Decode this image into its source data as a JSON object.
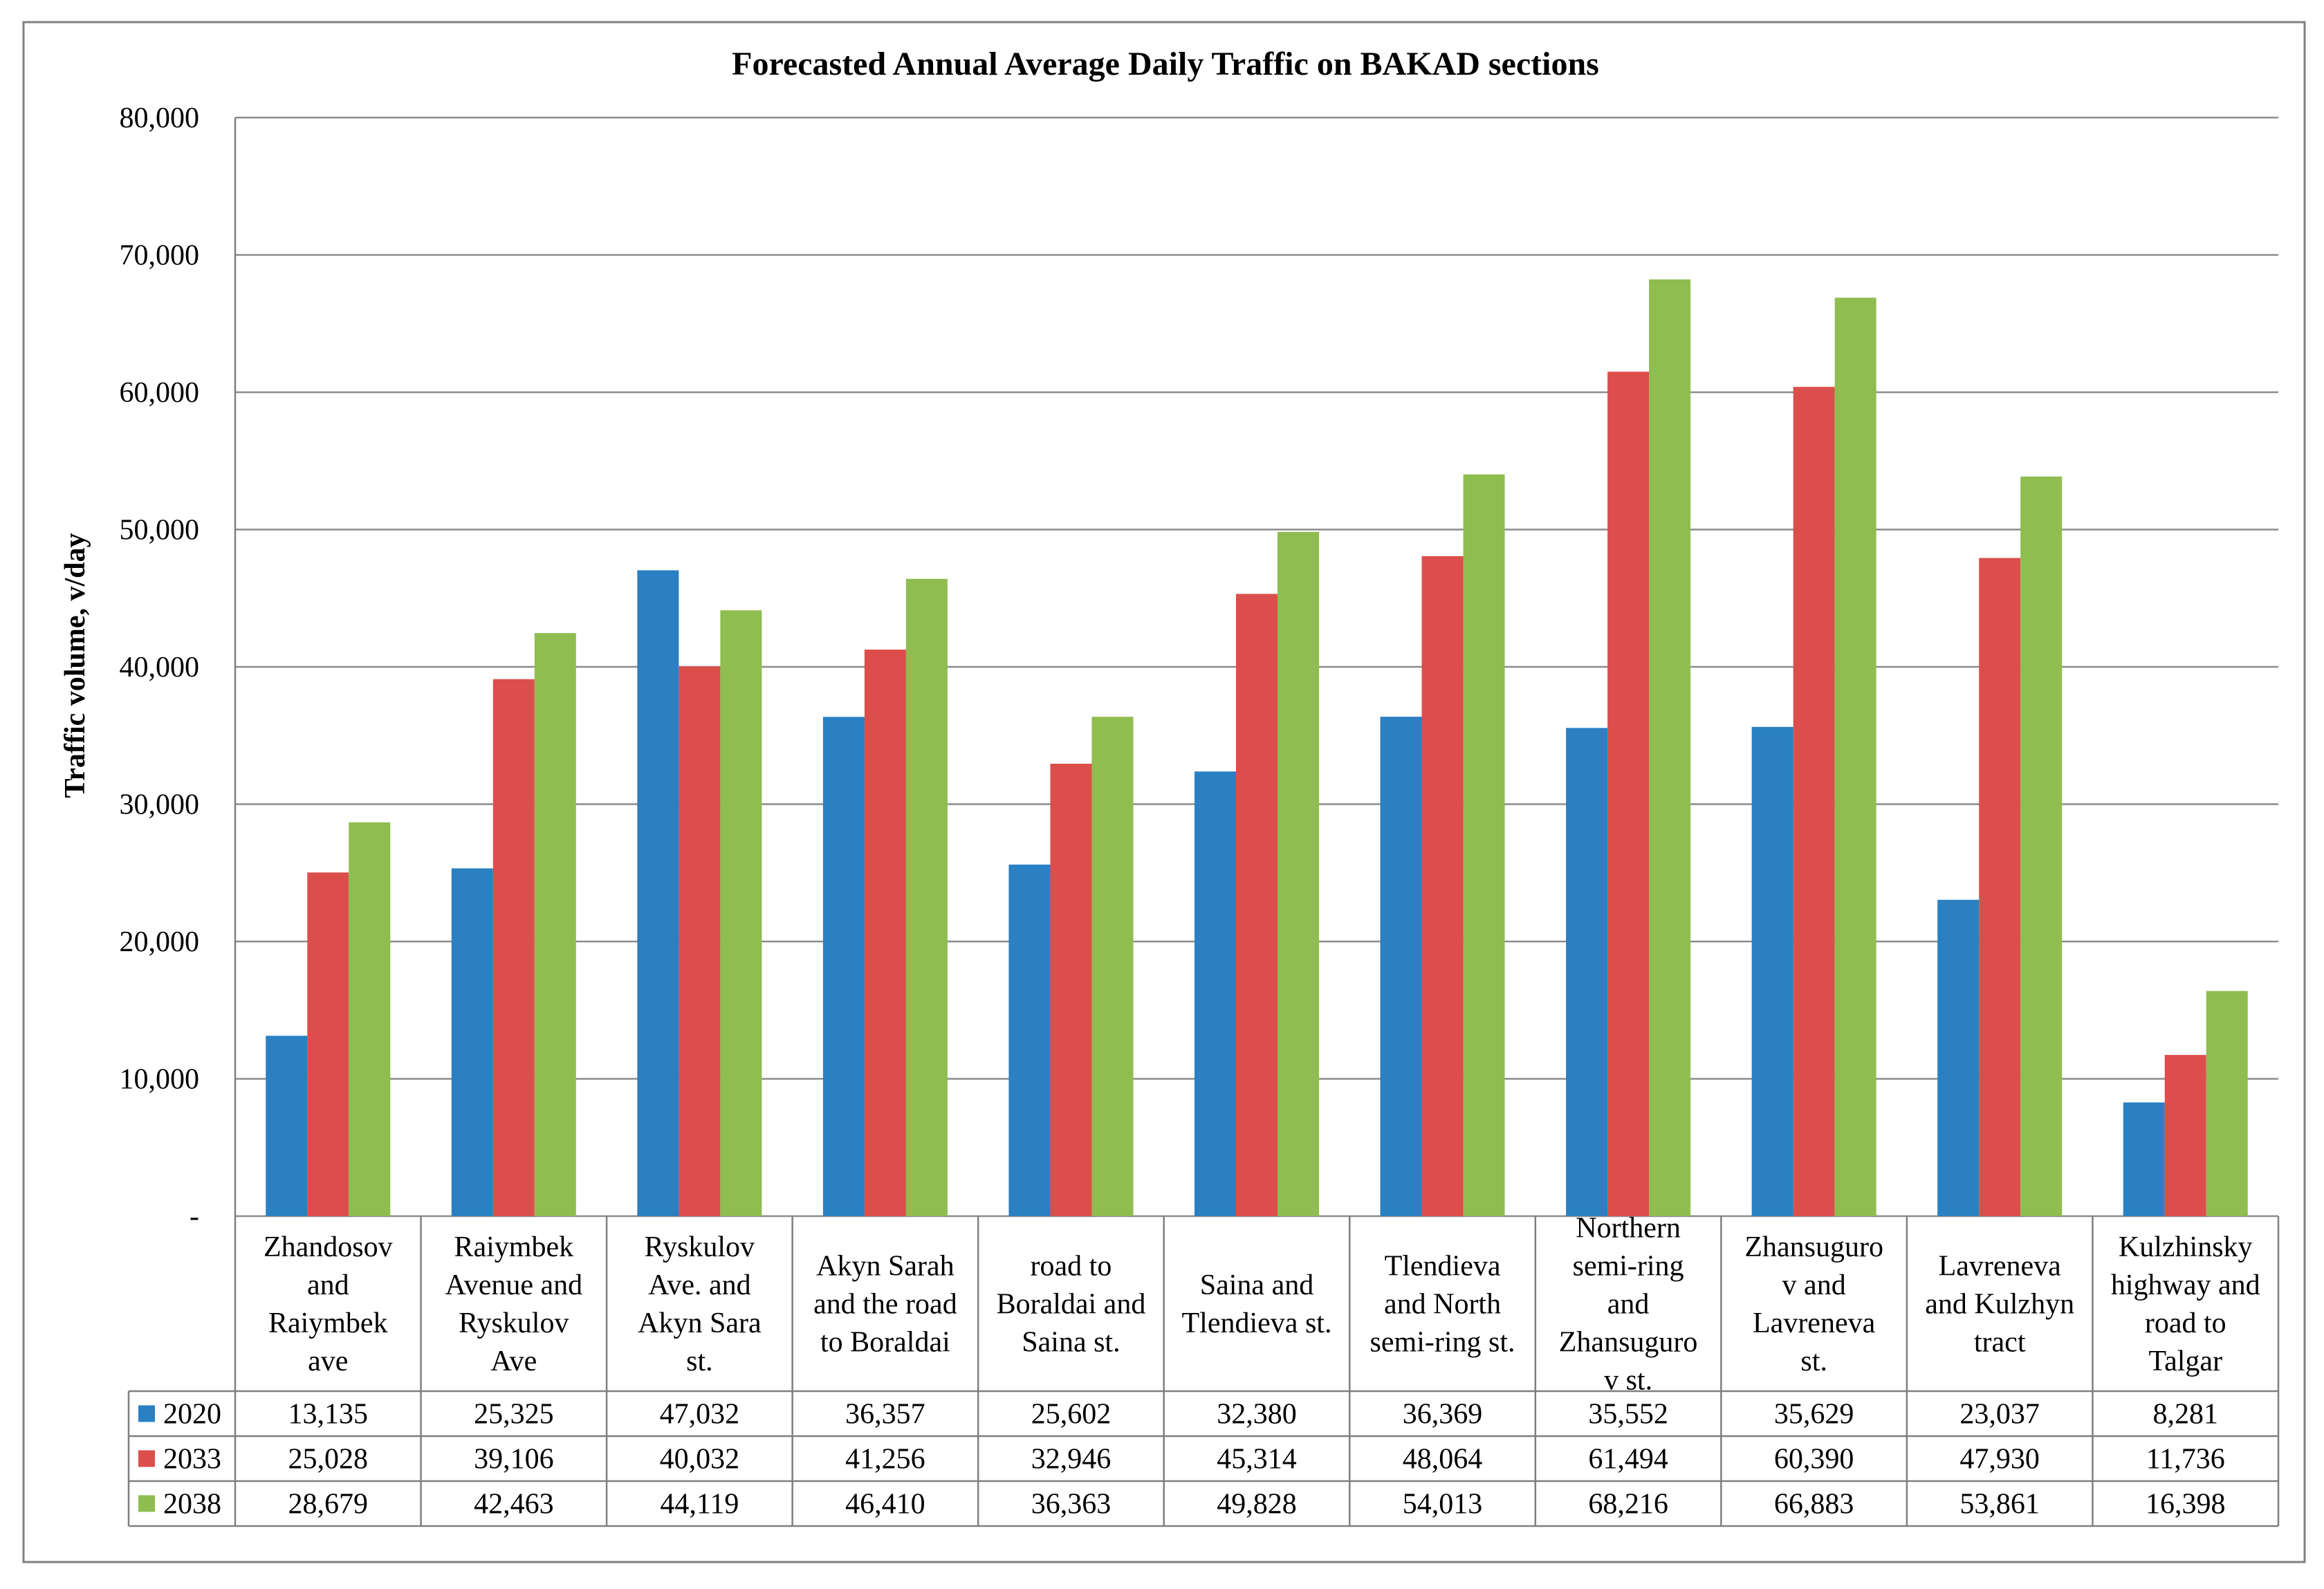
{
  "chart_data": {
    "type": "bar",
    "title": "Forecasted Annual Average  Daily Traffic  on BAKAD sections",
    "ylabel": "Traffic volume, v/day",
    "xlabel": "",
    "ylim": [
      0,
      80000
    ],
    "yticks": [
      0,
      10000,
      20000,
      30000,
      40000,
      50000,
      60000,
      70000,
      80000
    ],
    "ytick_labels": [
      "-",
      "10,000",
      "20,000",
      "30,000",
      "40,000",
      "50,000",
      "60,000",
      "70,000",
      "80,000"
    ],
    "grid": true,
    "legend": "data-table-left",
    "categories": [
      [
        "Zhandosov",
        "and",
        "Raiymbek",
        "ave"
      ],
      [
        "Raiymbek",
        "Avenue and",
        "Ryskulov",
        "Ave"
      ],
      [
        "Ryskulov",
        "Ave. and",
        "Akyn Sara",
        "st."
      ],
      [
        "Akyn Sarah",
        "and the road",
        "to Boraldai"
      ],
      [
        "road to",
        "Boraldai and",
        "Saina st."
      ],
      [
        "Saina and",
        "Tlendieva st."
      ],
      [
        "Tlendieva",
        "and North",
        "semi-ring st."
      ],
      [
        "Northern",
        "semi-ring",
        "and",
        "Zhansuguro",
        "v st."
      ],
      [
        "Zhansuguro",
        "v and",
        "Lavreneva",
        "st."
      ],
      [
        "Lavreneva",
        "and Kulzhyn",
        "tract"
      ],
      [
        "Kulzhinsky",
        "highway and",
        "road to",
        "Talgar"
      ]
    ],
    "series": [
      {
        "name": "2020",
        "color": "#2a80c2",
        "values": [
          13135,
          25325,
          47032,
          36357,
          25602,
          32380,
          36369,
          35552,
          35629,
          23037,
          8281
        ],
        "labels": [
          "13,135",
          "25,325",
          "47,032",
          "36,357",
          "25,602",
          "32,380",
          "36,369",
          "35,552",
          "35,629",
          "23,037",
          "8,281"
        ]
      },
      {
        "name": "2033",
        "color": "#dc4e4b",
        "values": [
          25028,
          39106,
          40032,
          41256,
          32946,
          45314,
          48064,
          61494,
          60390,
          47930,
          11736
        ],
        "labels": [
          "25,028",
          "39,106",
          "40,032",
          "41,256",
          "32,946",
          "45,314",
          "48,064",
          "61,494",
          "60,390",
          "47,930",
          "11,736"
        ]
      },
      {
        "name": "2038",
        "color": "#8fbd50",
        "values": [
          28679,
          42463,
          44119,
          46410,
          36363,
          49828,
          54013,
          68216,
          66883,
          53861,
          16398
        ],
        "labels": [
          "28,679",
          "42,463",
          "44,119",
          "46,410",
          "36,363",
          "49,828",
          "54,013",
          "68,216",
          "66,883",
          "53,861",
          "16,398"
        ]
      }
    ]
  }
}
